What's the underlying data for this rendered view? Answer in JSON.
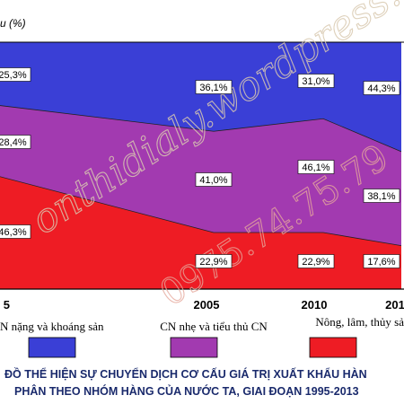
{
  "chart_data": {
    "type": "area",
    "stacked": true,
    "percent": true,
    "y_unit": "u (%)",
    "x": [
      "5",
      "2005",
      "2010",
      "201"
    ],
    "series": [
      {
        "name": "N nặng và khoáng sản",
        "values": [
          25.3,
          36.1,
          31.0,
          44.3
        ],
        "color": "#3a3fd6"
      },
      {
        "name": "CN nhẹ và tiểu thủ CN",
        "values": [
          28.4,
          41.0,
          46.1,
          38.1
        ],
        "color": "#a23ab0"
      },
      {
        "name": "Nông, lâm, thủy sả",
        "values": [
          46.3,
          22.9,
          22.9,
          17.6
        ],
        "color": "#ee1c24"
      }
    ],
    "data_labels": [
      [
        "25,3%",
        "36,1%",
        "31,0%",
        "44,3%"
      ],
      [
        "28,4%",
        "41,0%",
        "46,1%",
        "38,1%"
      ],
      [
        "46,3%",
        "22,9%",
        "22,9%",
        "17,6%"
      ]
    ],
    "title_lines": [
      "ĐỒ THỂ HIỆN SỰ CHUYỂN DỊCH CƠ CẤU GIÁ TRỊ XUẤT KHẨU HÀN",
      "PHÂN THEO NHÓM HÀNG CỦA NƯỚC TA, GIAI ĐOẠN 1995-2013"
    ],
    "watermark": [
      "onthidialy.wordpress.com",
      "0975.74.75.79"
    ]
  }
}
